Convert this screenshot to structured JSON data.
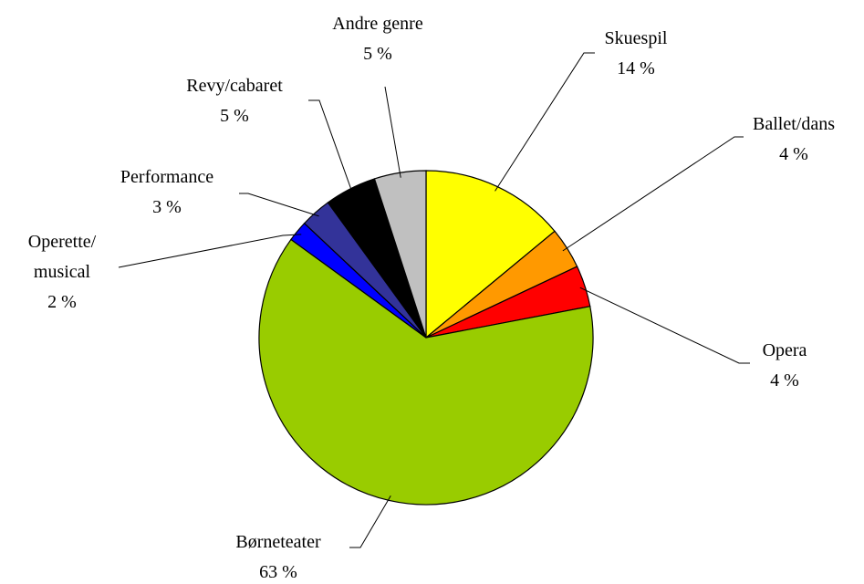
{
  "chart_data": {
    "type": "pie",
    "categories": [
      "Skuespil",
      "Ballet/dans",
      "Opera",
      "Børneteater",
      "Operette/\nmusical",
      "Performance",
      "Revy/cabaret",
      "Andre genre"
    ],
    "values": [
      14,
      4,
      4,
      63,
      2,
      3,
      5,
      5
    ],
    "value_labels": [
      "14 %",
      "4 %",
      "4 %",
      "63 %",
      "2 %",
      "3 %",
      "5 %",
      "5 %"
    ],
    "colors": [
      "#ffff00",
      "#ff9900",
      "#ff0000",
      "#99cc00",
      "#0000ff",
      "#333399",
      "#000000",
      "#c0c0c0"
    ]
  }
}
